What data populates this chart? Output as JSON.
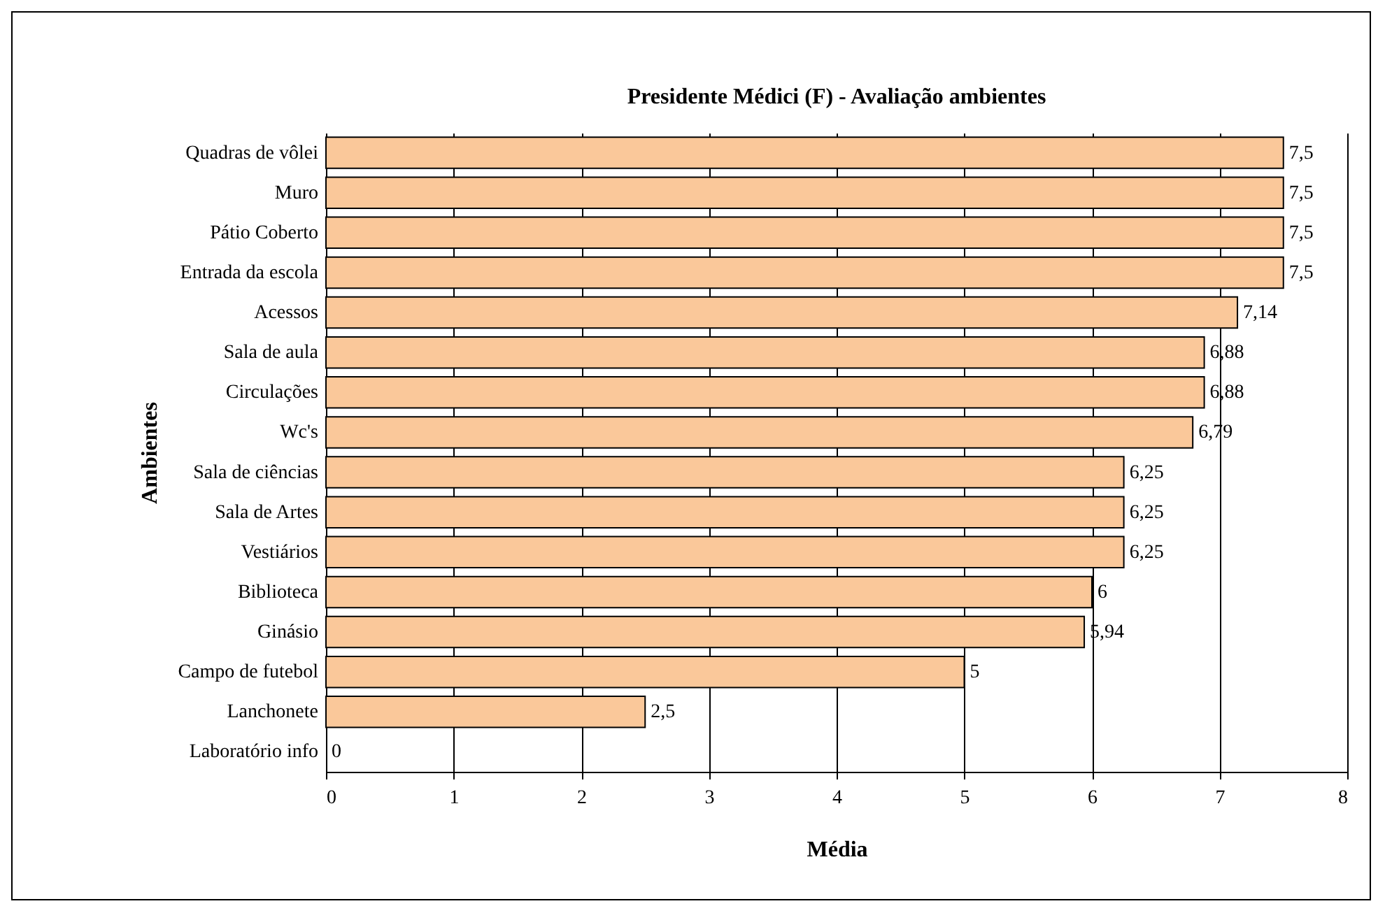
{
  "chart_data": {
    "type": "bar",
    "orientation": "horizontal",
    "title": "Presidente Médici (F) - Avaliação ambientes",
    "xlabel": "Média",
    "ylabel": "Ambientes",
    "categories": [
      "Quadras de vôlei",
      "Muro",
      "Pátio Coberto",
      "Entrada da escola",
      "Acessos",
      "Sala de aula",
      "Circulações",
      "Wc's",
      "Sala de ciências",
      "Sala de Artes",
      "Vestiários",
      "Biblioteca",
      "Ginásio",
      "Campo de futebol",
      "Lanchonete",
      "Laboratório info"
    ],
    "values": [
      7.5,
      7.5,
      7.5,
      7.5,
      7.14,
      6.88,
      6.88,
      6.79,
      6.25,
      6.25,
      6.25,
      6,
      5.94,
      5,
      2.5,
      0
    ],
    "value_labels": [
      "7,5",
      "7,5",
      "7,5",
      "7,5",
      "7,14",
      "6,88",
      "6,88",
      "6,79",
      "6,25",
      "6,25",
      "6,25",
      "6",
      "5,94",
      "5",
      "2,5",
      "0"
    ],
    "color": "#fac89a",
    "xlim": [
      0,
      8
    ],
    "xticks": [
      0,
      1,
      2,
      3,
      4,
      5,
      6,
      7,
      8
    ],
    "grid": "x"
  }
}
